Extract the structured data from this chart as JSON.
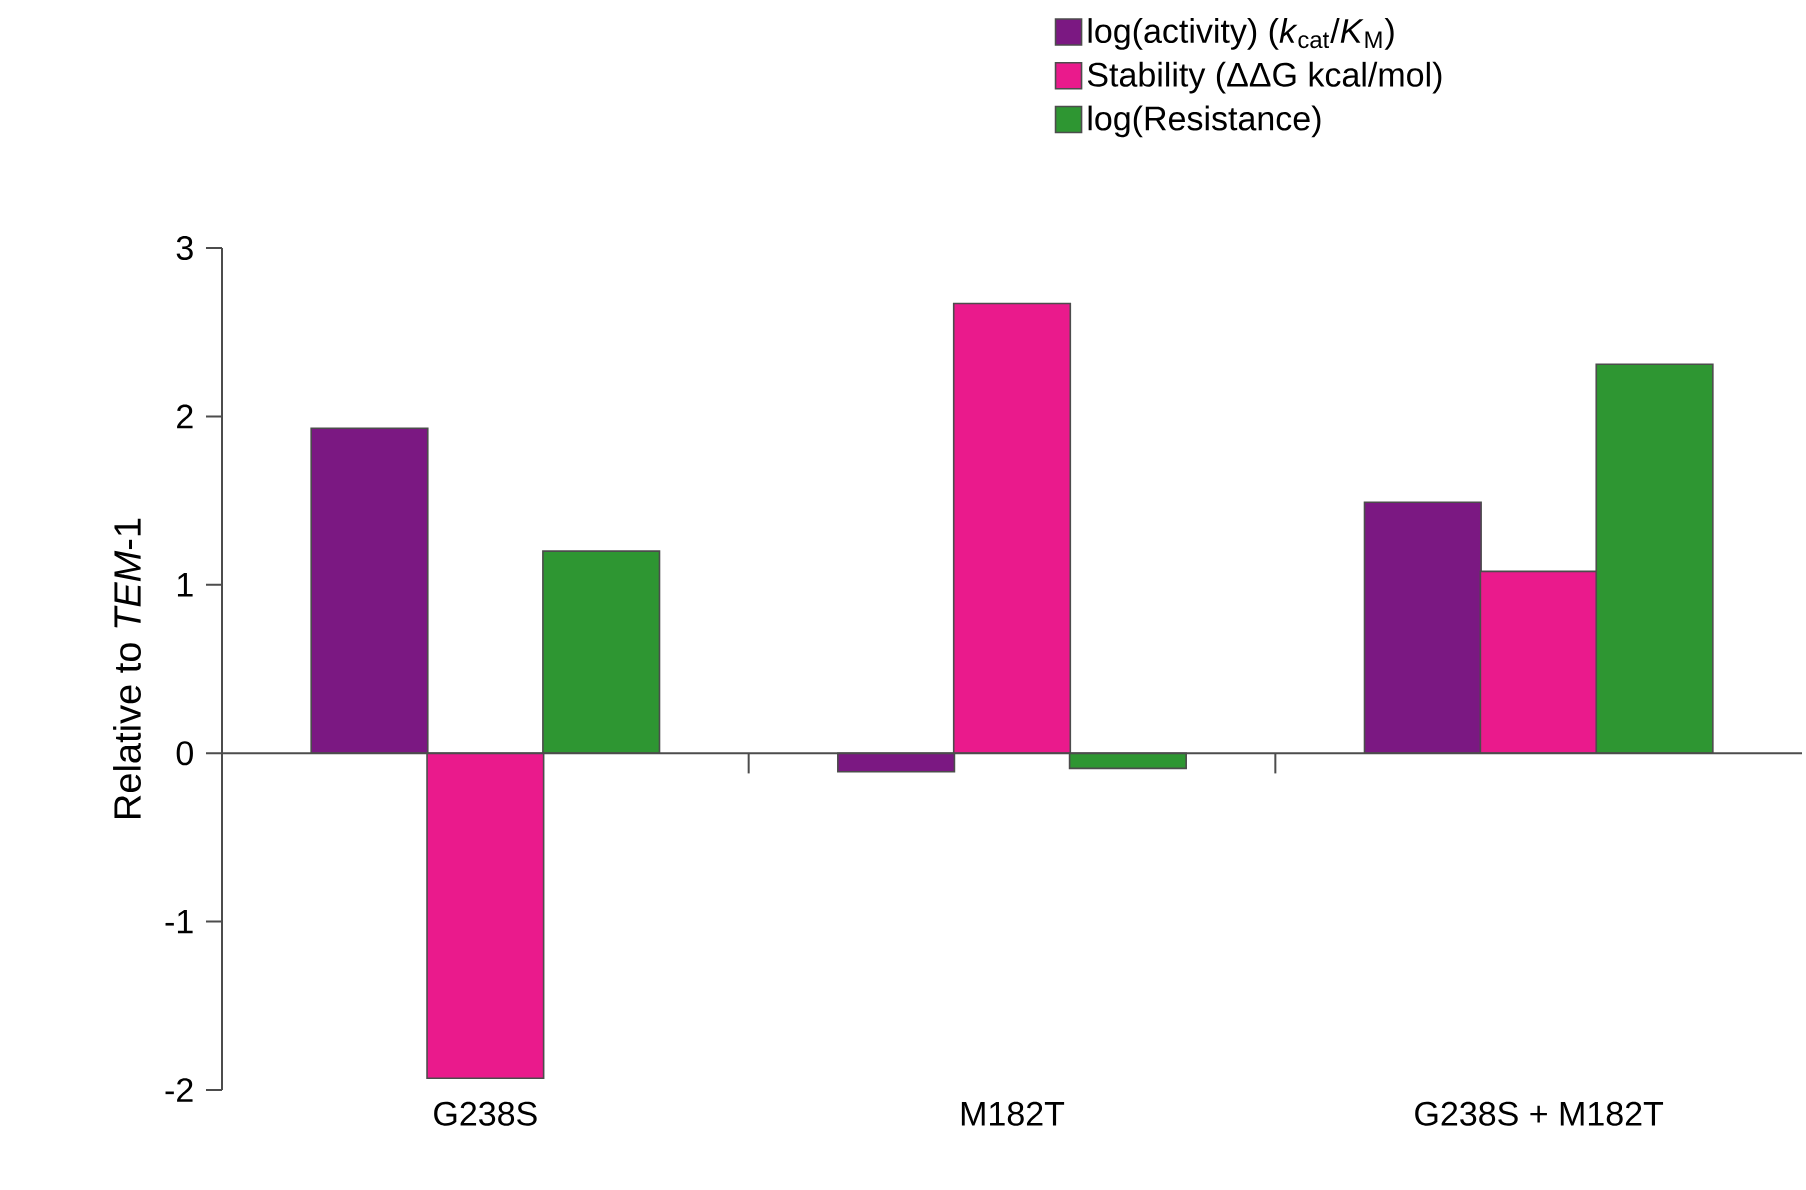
{
  "chart_data": {
    "type": "bar",
    "ylabel": "Relative to *TEM*-1",
    "categories": [
      "G238S",
      "M182T",
      "G238S + M182T"
    ],
    "series": [
      {
        "name": "log(activity) (*k*$_{cat}$/*K*$_{M}$)",
        "color": "#7b1882",
        "values": [
          1.93,
          -0.11,
          1.49
        ]
      },
      {
        "name": "Stability (ΔΔG kcal/mol)",
        "color": "#ea1a8c",
        "values": [
          -1.93,
          2.67,
          1.08
        ]
      },
      {
        "name": "log(Resistance)",
        "color": "#2e9632",
        "values": [
          1.2,
          -0.09,
          2.31
        ]
      }
    ],
    "ylim": [
      -2,
      3
    ],
    "yticks": [
      -2,
      -1,
      0,
      1,
      2,
      3
    ],
    "legend": "top right"
  }
}
